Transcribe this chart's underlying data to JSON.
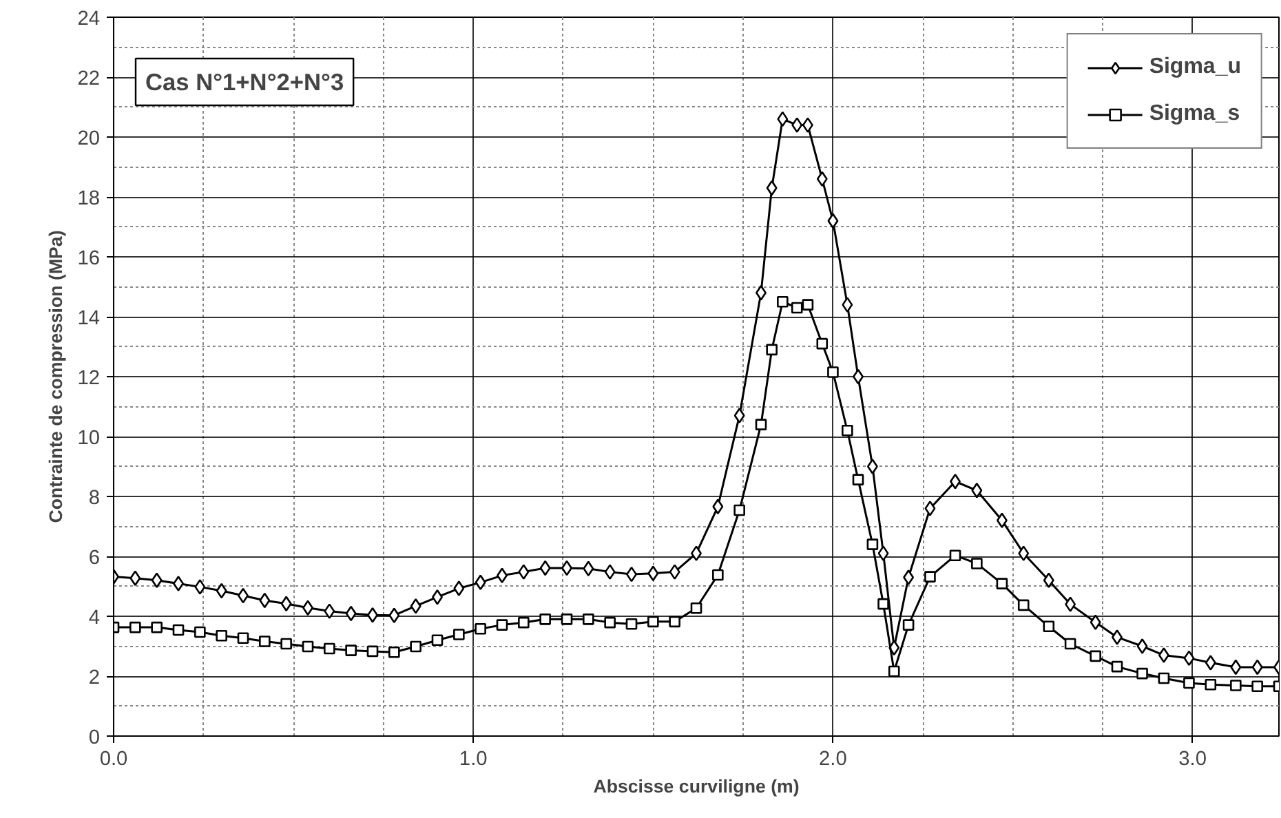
{
  "chart_data": {
    "type": "line",
    "xlabel": "Abscisse curviligne (m)",
    "ylabel": "Contrainte de compression (MPa)",
    "annotations": [
      "Cas N°1+N°2+N°3"
    ],
    "x": [
      0,
      0.06,
      0.12,
      0.18,
      0.24,
      0.3,
      0.36,
      0.42,
      0.48,
      0.54,
      0.6,
      0.66,
      0.72,
      0.78,
      0.84,
      0.9,
      0.96,
      1.02,
      1.08,
      1.14,
      1.2,
      1.26,
      1.32,
      1.38,
      1.44,
      1.5,
      1.56,
      1.62,
      1.68,
      1.74,
      1.8,
      1.83,
      1.86,
      1.9,
      1.93,
      1.97,
      2.0,
      2.04,
      2.07,
      2.11,
      2.14,
      2.17,
      2.21,
      2.27,
      2.34,
      2.4,
      2.47,
      2.53,
      2.6,
      2.66,
      2.73,
      2.79,
      2.86,
      2.92,
      2.99,
      3.05,
      3.12,
      3.18,
      3.24
    ],
    "series": [
      {
        "name": "Sigma_u",
        "color": "#000000",
        "marker": "diamond",
        "values": [
          5.32,
          5.27,
          5.2,
          5.09,
          4.98,
          4.85,
          4.69,
          4.53,
          4.42,
          4.28,
          4.17,
          4.09,
          4.04,
          4.03,
          4.34,
          4.64,
          4.93,
          5.13,
          5.36,
          5.48,
          5.61,
          5.61,
          5.59,
          5.48,
          5.4,
          5.43,
          5.48,
          6.1,
          7.66,
          10.7,
          14.8,
          18.3,
          20.6,
          20.4,
          20.4,
          18.6,
          17.2,
          14.4,
          12.0,
          9.0,
          6.1,
          2.95,
          5.3,
          7.6,
          8.5,
          8.2,
          7.2,
          6.1,
          5.2,
          4.4,
          3.8,
          3.3,
          3.0,
          2.7,
          2.6,
          2.45,
          2.3,
          2.3,
          2.3
        ]
      },
      {
        "name": "Sigma_s",
        "color": "#000000",
        "marker": "square",
        "values": [
          3.63,
          3.63,
          3.63,
          3.54,
          3.47,
          3.35,
          3.27,
          3.16,
          3.08,
          2.99,
          2.92,
          2.86,
          2.83,
          2.8,
          2.99,
          3.2,
          3.39,
          3.58,
          3.71,
          3.79,
          3.9,
          3.9,
          3.9,
          3.79,
          3.74,
          3.82,
          3.82,
          4.27,
          5.38,
          7.54,
          10.4,
          12.9,
          14.5,
          14.3,
          14.4,
          13.1,
          12.15,
          10.2,
          8.56,
          6.4,
          4.41,
          2.16,
          3.71,
          5.32,
          6.03,
          5.76,
          5.09,
          4.37,
          3.66,
          3.08,
          2.67,
          2.32,
          2.09,
          1.93,
          1.77,
          1.72,
          1.69,
          1.66,
          1.66
        ]
      }
    ],
    "xlim": [
      0,
      3.24
    ],
    "xticks": [
      {
        "value": 0,
        "label": "0.0"
      },
      {
        "value": 1,
        "label": "1.0"
      },
      {
        "value": 2,
        "label": "2.0"
      },
      {
        "value": 3,
        "label": "3.0"
      }
    ],
    "ylim": [
      0,
      24
    ],
    "yticks": [
      0,
      2,
      4,
      6,
      8,
      10,
      12,
      14,
      16,
      18,
      20,
      22,
      24
    ],
    "grid": true,
    "legend": "top right",
    "line_style": "solid"
  }
}
